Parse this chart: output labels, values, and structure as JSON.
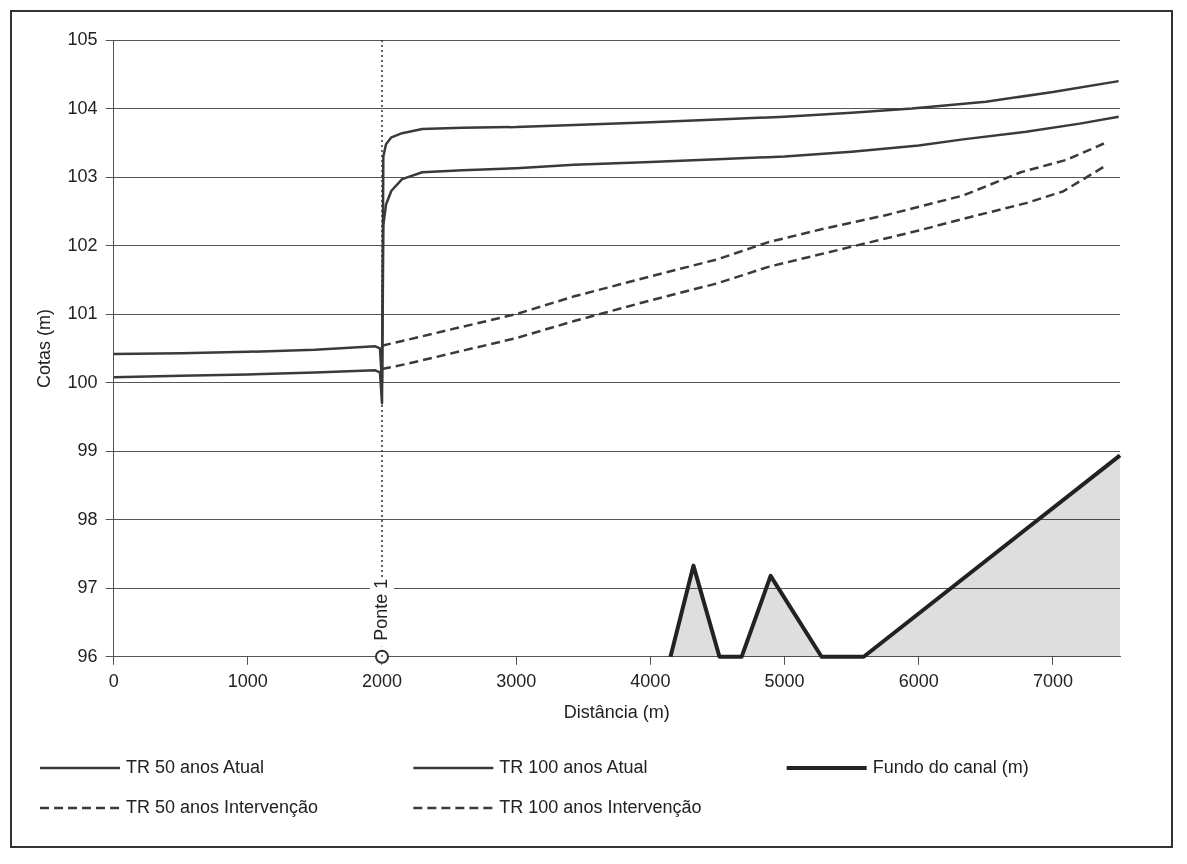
{
  "chart_data": {
    "type": "line",
    "xlabel": "Distância (m)",
    "ylabel": "Cotas (m)",
    "xlim": [
      0,
      7500
    ],
    "xticks": [
      0,
      1000,
      2000,
      3000,
      4000,
      5000,
      6000,
      7000
    ],
    "ylim": [
      96,
      105
    ],
    "yticks": [
      96,
      97,
      98,
      99,
      100,
      101,
      102,
      103,
      104,
      105
    ],
    "grid": "y",
    "legend": "bottom",
    "marker": "none",
    "ref_lines": [
      {
        "axis": "x",
        "value": 2000,
        "label": "Ponte 1",
        "line_style": "dotted",
        "color": "#333333"
      }
    ],
    "series": [
      {
        "name": "TR 50 anos Atual",
        "color": "#3a3a3a",
        "line_style": "solid",
        "x": [
          0,
          500,
          1000,
          1500,
          1950,
          1985,
          2000,
          2010,
          2030,
          2070,
          2150,
          2300,
          2600,
          3000,
          3433,
          4000,
          4500,
          5000,
          5500,
          6000,
          6330,
          6800,
          7200,
          7490
        ],
        "values": [
          100.08,
          100.1,
          100.12,
          100.15,
          100.18,
          100.15,
          99.7,
          102.3,
          102.6,
          102.8,
          102.97,
          103.07,
          103.1,
          103.13,
          103.18,
          103.22,
          103.26,
          103.3,
          103.37,
          103.46,
          103.55,
          103.66,
          103.78,
          103.88
        ]
      },
      {
        "name": "TR 100 anos Atual",
        "color": "#3a3a3a",
        "line_style": "solid",
        "x": [
          0,
          500,
          1000,
          1500,
          1950,
          1985,
          2000,
          2010,
          2030,
          2070,
          2150,
          2300,
          2600,
          3000,
          3433,
          4000,
          4500,
          5000,
          5500,
          5950,
          6500,
          7000,
          7490
        ],
        "values": [
          100.42,
          100.43,
          100.45,
          100.48,
          100.53,
          100.5,
          100.0,
          103.3,
          103.48,
          103.58,
          103.64,
          103.7,
          103.72,
          103.73,
          103.76,
          103.8,
          103.84,
          103.88,
          103.94,
          104.0,
          104.1,
          104.24,
          104.4
        ]
      },
      {
        "name": "Fundo do canal (m)",
        "type": "area",
        "color": "#222222",
        "x": [
          4150,
          4321,
          4515,
          4680,
          4896,
          5276,
          5590,
          7500
        ],
        "values": [
          96,
          97.33,
          96,
          96,
          97.18,
          96,
          96,
          98.94
        ]
      },
      {
        "name": "TR 50 anos Intervenção",
        "color": "#3a3a3a",
        "line_style": "dashed",
        "x": [
          2000,
          2200,
          2500,
          3000,
          3433,
          4000,
          4500,
          4880,
          5470,
          6000,
          6330,
          6800,
          7075,
          7380
        ],
        "values": [
          100.2,
          100.28,
          100.42,
          100.65,
          100.9,
          101.2,
          101.45,
          101.69,
          101.97,
          102.22,
          102.39,
          102.62,
          102.79,
          103.15
        ]
      },
      {
        "name": "TR 100 anos Intervenção",
        "color": "#3a3a3a",
        "line_style": "dashed",
        "x": [
          2000,
          2200,
          2500,
          3000,
          3433,
          4000,
          4500,
          4880,
          5300,
          5746,
          6330,
          6760,
          7100,
          7380
        ],
        "values": [
          100.54,
          100.63,
          100.77,
          101.0,
          101.26,
          101.55,
          101.8,
          102.05,
          102.25,
          102.44,
          102.73,
          103.07,
          103.25,
          103.49
        ]
      },
      {
        "type": "scatter",
        "color": "#333333",
        "marker": "circle",
        "x": [
          2000
        ],
        "values": [
          96
        ]
      }
    ]
  }
}
